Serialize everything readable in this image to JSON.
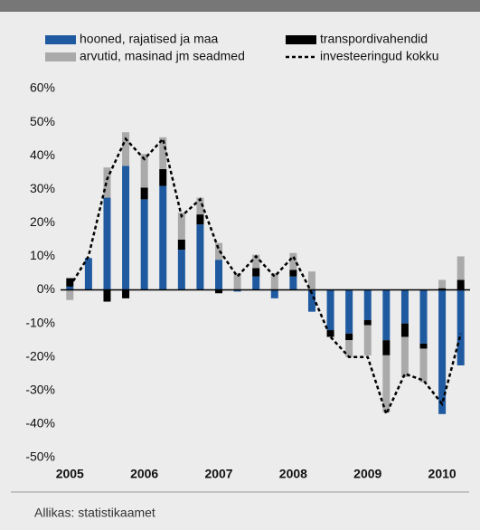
{
  "chart_data": {
    "type": "bar",
    "categories": [
      "2005",
      null,
      null,
      null,
      "2006",
      null,
      null,
      null,
      "2007",
      null,
      null,
      null,
      "2008",
      null,
      null,
      null,
      "2009",
      null,
      null,
      null,
      "2010",
      null
    ],
    "series": [
      {
        "name": "hooned, rajatised ja maa",
        "color": "#1f5aa0",
        "values": [
          1,
          9.5,
          27.5,
          37,
          27,
          31,
          12,
          19.5,
          9,
          -0.5,
          4,
          -2.5,
          4,
          -6.5,
          -12,
          -13,
          -9,
          -15,
          -10,
          -16,
          -37,
          -22.5
        ]
      },
      {
        "name": "transpordivahendid",
        "color": "#000000",
        "values": [
          2.5,
          0,
          -3.5,
          -2.5,
          3.5,
          5,
          3,
          3,
          -1,
          0,
          2.5,
          0,
          2,
          0,
          -2,
          -2,
          -1.5,
          -4.5,
          -4,
          -1.5,
          0.5,
          3
        ]
      },
      {
        "name": "arvutid, masinad jm seadmed",
        "color": "#aaaaaa",
        "values": [
          -3,
          0,
          9,
          10,
          10,
          9.5,
          8,
          5,
          5,
          5,
          4,
          5,
          5,
          5.5,
          0,
          -5,
          -9,
          -17,
          -12,
          -10,
          2.5,
          7
        ]
      },
      {
        "name": "investeeringud kokku",
        "color": "#000000",
        "line": true,
        "values": [
          1,
          10,
          33,
          45,
          39,
          45,
          22,
          27,
          12,
          4,
          10,
          4,
          10,
          -1,
          -14,
          -20,
          -20,
          -37,
          -25,
          -27,
          -34,
          -13
        ]
      }
    ],
    "ylim": [
      -50,
      60
    ],
    "yticks": [
      {
        "value": -50,
        "label": "-50%"
      },
      {
        "value": -40,
        "label": "-40%"
      },
      {
        "value": -30,
        "label": "-30%"
      },
      {
        "value": -20,
        "label": "-20%"
      },
      {
        "value": -10,
        "label": "-10%"
      },
      {
        "value": 0,
        "label": "0%"
      },
      {
        "value": 10,
        "label": "10%"
      },
      {
        "value": 20,
        "label": "20%"
      },
      {
        "value": 30,
        "label": "30%"
      },
      {
        "value": 40,
        "label": "40%"
      },
      {
        "value": 50,
        "label": "50%"
      },
      {
        "value": 60,
        "label": "60%"
      }
    ],
    "source": "Allikas: statistikaamet"
  }
}
